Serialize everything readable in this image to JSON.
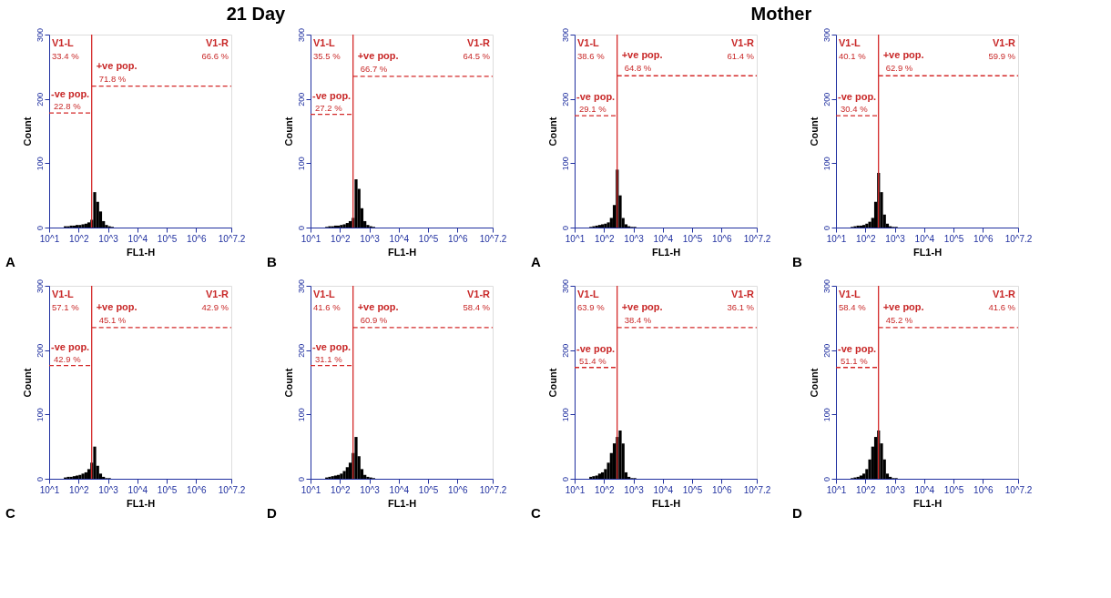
{
  "chart_data": [
    {
      "type": "histogram",
      "title": "21 Day",
      "xlabel": "FL1-H",
      "ylabel": "Count",
      "log": "x",
      "xlim": [
        10,
        15848932
      ],
      "xticks": [
        {
          "value": 10,
          "label": "10^1"
        },
        {
          "value": 100,
          "label": "10^2"
        },
        {
          "value": 1000,
          "label": "10^3"
        },
        {
          "value": 10000,
          "label": "10^4"
        },
        {
          "value": 100000,
          "label": "10^5"
        },
        {
          "value": 1000000,
          "label": "10^6"
        },
        {
          "value": 15848932,
          "label": "10^7.2"
        }
      ],
      "ylim": [
        0,
        300
      ],
      "yticks": [
        0,
        100,
        200,
        300
      ],
      "color": "#000000",
      "bins": [
        31.6,
        39.8,
        50.1,
        63.1,
        79.4,
        100,
        125.9,
        158.5,
        199.5,
        251.2,
        316.2,
        398.1,
        501.2,
        631,
        794.3,
        1000,
        1258.9,
        1584.9
      ],
      "values": [
        2,
        2,
        3,
        3,
        4,
        4,
        5,
        6,
        8,
        12,
        55,
        40,
        25,
        10,
        4,
        2,
        1
      ],
      "ref_lines": [
        {
          "axis": "x",
          "value": 280,
          "color": "#d42a2a"
        }
      ],
      "series": [
        {
          "type": "line",
          "line_style": "dashed",
          "color": "#d42a2a",
          "x": [
            10,
            280
          ],
          "values": [
            178,
            178
          ]
        },
        {
          "type": "line",
          "line_style": "dashed",
          "color": "#d42a2a",
          "x": [
            280,
            15848932
          ],
          "values": [
            220,
            220
          ]
        }
      ],
      "annotations": [
        "A",
        "V1-L",
        "33.4 %",
        "V1-R",
        "66.6 %",
        "-ve pop.",
        "22.8 %",
        "+ve pop.",
        "71.8 %"
      ]
    },
    {
      "type": "histogram",
      "xlabel": "FL1-H",
      "ylabel": "Count",
      "log": "x",
      "xlim": [
        10,
        15848932
      ],
      "xticks": [
        {
          "value": 10,
          "label": "10^1"
        },
        {
          "value": 100,
          "label": "10^2"
        },
        {
          "value": 1000,
          "label": "10^3"
        },
        {
          "value": 10000,
          "label": "10^4"
        },
        {
          "value": 100000,
          "label": "10^5"
        },
        {
          "value": 1000000,
          "label": "10^6"
        },
        {
          "value": 15848932,
          "label": "10^7.2"
        }
      ],
      "ylim": [
        0,
        300
      ],
      "yticks": [
        0,
        100,
        200,
        300
      ],
      "color": "#000000",
      "bins": [
        31.6,
        39.8,
        50.1,
        63.1,
        79.4,
        100,
        125.9,
        158.5,
        199.5,
        251.2,
        316.2,
        398.1,
        501.2,
        631,
        794.3,
        1000,
        1258.9,
        1584.9
      ],
      "values": [
        1,
        2,
        2,
        3,
        3,
        4,
        5,
        7,
        10,
        15,
        75,
        60,
        30,
        10,
        4,
        2,
        1
      ],
      "ref_lines": [
        {
          "axis": "x",
          "value": 280,
          "color": "#d42a2a"
        }
      ],
      "series": [
        {
          "type": "line",
          "line_style": "dashed",
          "color": "#d42a2a",
          "x": [
            10,
            280
          ],
          "values": [
            176,
            176
          ]
        },
        {
          "type": "line",
          "line_style": "dashed",
          "color": "#d42a2a",
          "x": [
            280,
            15848932
          ],
          "values": [
            235,
            235
          ]
        }
      ],
      "annotations": [
        "B",
        "V1-L",
        "35.5 %",
        "V1-R",
        "64.5 %",
        "-ve pop.",
        "27.2 %",
        "+ve pop.",
        "66.7 %"
      ]
    },
    {
      "type": "histogram",
      "xlabel": "FL1-H",
      "ylabel": "Count",
      "log": "x",
      "xlim": [
        10,
        15848932
      ],
      "xticks": [
        {
          "value": 10,
          "label": "10^1"
        },
        {
          "value": 100,
          "label": "10^2"
        },
        {
          "value": 1000,
          "label": "10^3"
        },
        {
          "value": 10000,
          "label": "10^4"
        },
        {
          "value": 100000,
          "label": "10^5"
        },
        {
          "value": 1000000,
          "label": "10^6"
        },
        {
          "value": 15848932,
          "label": "10^7.2"
        }
      ],
      "ylim": [
        0,
        300
      ],
      "yticks": [
        0,
        100,
        200,
        300
      ],
      "color": "#000000",
      "bins": [
        31.6,
        39.8,
        50.1,
        63.1,
        79.4,
        100,
        125.9,
        158.5,
        199.5,
        251.2,
        316.2,
        398.1,
        501.2,
        631,
        794.3,
        1000,
        1258.9,
        1584.9
      ],
      "values": [
        2,
        3,
        3,
        4,
        5,
        6,
        8,
        10,
        15,
        25,
        50,
        20,
        8,
        3,
        1,
        1,
        0
      ],
      "ref_lines": [
        {
          "axis": "x",
          "value": 280,
          "color": "#d42a2a"
        }
      ],
      "series": [
        {
          "type": "line",
          "line_style": "dashed",
          "color": "#d42a2a",
          "x": [
            10,
            280
          ],
          "values": [
            176,
            176
          ]
        },
        {
          "type": "line",
          "line_style": "dashed",
          "color": "#d42a2a",
          "x": [
            280,
            15848932
          ],
          "values": [
            235,
            235
          ]
        }
      ],
      "annotations": [
        "C",
        "V1-L",
        "57.1 %",
        "V1-R",
        "42.9 %",
        "-ve pop.",
        "42.9 %",
        "+ve pop.",
        "45.1 %"
      ]
    },
    {
      "type": "histogram",
      "xlabel": "FL1-H",
      "ylabel": "Count",
      "log": "x",
      "xlim": [
        10,
        15848932
      ],
      "xticks": [
        {
          "value": 10,
          "label": "10^1"
        },
        {
          "value": 100,
          "label": "10^2"
        },
        {
          "value": 1000,
          "label": "10^3"
        },
        {
          "value": 10000,
          "label": "10^4"
        },
        {
          "value": 100000,
          "label": "10^5"
        },
        {
          "value": 1000000,
          "label": "10^6"
        },
        {
          "value": 15848932,
          "label": "10^7.2"
        }
      ],
      "ylim": [
        0,
        300
      ],
      "yticks": [
        0,
        100,
        200,
        300
      ],
      "color": "#000000",
      "bins": [
        31.6,
        39.8,
        50.1,
        63.1,
        79.4,
        100,
        125.9,
        158.5,
        199.5,
        251.2,
        316.2,
        398.1,
        501.2,
        631,
        794.3,
        1000,
        1258.9,
        1584.9
      ],
      "values": [
        2,
        3,
        4,
        5,
        6,
        8,
        12,
        18,
        25,
        40,
        65,
        35,
        15,
        6,
        3,
        2,
        1
      ],
      "ref_lines": [
        {
          "axis": "x",
          "value": 280,
          "color": "#d42a2a"
        }
      ],
      "series": [
        {
          "type": "line",
          "line_style": "dashed",
          "color": "#d42a2a",
          "x": [
            10,
            280
          ],
          "values": [
            176,
            176
          ]
        },
        {
          "type": "line",
          "line_style": "dashed",
          "color": "#d42a2a",
          "x": [
            280,
            15848932
          ],
          "values": [
            235,
            235
          ]
        }
      ],
      "annotations": [
        "D",
        "V1-L",
        "41.6 %",
        "V1-R",
        "58.4 %",
        "-ve pop.",
        "31.1 %",
        "+ve pop.",
        "60.9 %"
      ]
    },
    {
      "type": "histogram",
      "title": "Mother",
      "xlabel": "FL1-H",
      "ylabel": "Count",
      "log": "x",
      "xlim": [
        10,
        15848932
      ],
      "xticks": [
        {
          "value": 10,
          "label": "10^1"
        },
        {
          "value": 100,
          "label": "10^2"
        },
        {
          "value": 1000,
          "label": "10^3"
        },
        {
          "value": 10000,
          "label": "10^4"
        },
        {
          "value": 100000,
          "label": "10^5"
        },
        {
          "value": 1000000,
          "label": "10^6"
        },
        {
          "value": 15848932,
          "label": "10^7.2"
        }
      ],
      "ylim": [
        0,
        300
      ],
      "yticks": [
        0,
        100,
        200,
        300
      ],
      "color": "#000000",
      "bins": [
        31.6,
        39.8,
        50.1,
        63.1,
        79.4,
        100,
        125.9,
        158.5,
        199.5,
        251.2,
        316.2,
        398.1,
        501.2,
        631,
        794.3,
        1000,
        1258.9,
        1584.9
      ],
      "values": [
        1,
        2,
        3,
        4,
        5,
        6,
        8,
        15,
        35,
        90,
        50,
        15,
        5,
        2,
        1,
        1,
        0
      ],
      "ref_lines": [
        {
          "axis": "x",
          "value": 280,
          "color": "#d42a2a"
        }
      ],
      "series": [
        {
          "type": "line",
          "line_style": "dashed",
          "color": "#d42a2a",
          "x": [
            10,
            280
          ],
          "values": [
            174,
            174
          ]
        },
        {
          "type": "line",
          "line_style": "dashed",
          "color": "#d42a2a",
          "x": [
            280,
            15848932
          ],
          "values": [
            236,
            236
          ]
        }
      ],
      "annotations": [
        "A",
        "V1-L",
        "38.6 %",
        "V1-R",
        "61.4 %",
        "-ve pop.",
        "29.1 %",
        "+ve pop.",
        "64.8 %"
      ]
    },
    {
      "type": "histogram",
      "xlabel": "FL1-H",
      "ylabel": "Count",
      "log": "x",
      "xlim": [
        10,
        15848932
      ],
      "xticks": [
        {
          "value": 10,
          "label": "10^1"
        },
        {
          "value": 100,
          "label": "10^2"
        },
        {
          "value": 1000,
          "label": "10^3"
        },
        {
          "value": 10000,
          "label": "10^4"
        },
        {
          "value": 100000,
          "label": "10^5"
        },
        {
          "value": 1000000,
          "label": "10^6"
        },
        {
          "value": 15848932,
          "label": "10^7.2"
        }
      ],
      "ylim": [
        0,
        300
      ],
      "yticks": [
        0,
        100,
        200,
        300
      ],
      "color": "#000000",
      "bins": [
        31.6,
        39.8,
        50.1,
        63.1,
        79.4,
        100,
        125.9,
        158.5,
        199.5,
        251.2,
        316.2,
        398.1,
        501.2,
        631,
        794.3,
        1000,
        1258.9,
        1584.9
      ],
      "values": [
        1,
        2,
        3,
        3,
        4,
        6,
        9,
        15,
        40,
        85,
        55,
        20,
        6,
        2,
        1,
        1,
        0
      ],
      "ref_lines": [
        {
          "axis": "x",
          "value": 280,
          "color": "#d42a2a"
        }
      ],
      "series": [
        {
          "type": "line",
          "line_style": "dashed",
          "color": "#d42a2a",
          "x": [
            10,
            280
          ],
          "values": [
            174,
            174
          ]
        },
        {
          "type": "line",
          "line_style": "dashed",
          "color": "#d42a2a",
          "x": [
            280,
            15848932
          ],
          "values": [
            236,
            236
          ]
        }
      ],
      "annotations": [
        "B",
        "V1-L",
        "40.1 %",
        "V1-R",
        "59.9 %",
        "-ve pop.",
        "30.4 %",
        "+ve pop.",
        "62.9 %"
      ]
    },
    {
      "type": "histogram",
      "xlabel": "FL1-H",
      "ylabel": "Count",
      "log": "x",
      "xlim": [
        10,
        15848932
      ],
      "xticks": [
        {
          "value": 10,
          "label": "10^1"
        },
        {
          "value": 100,
          "label": "10^2"
        },
        {
          "value": 1000,
          "label": "10^3"
        },
        {
          "value": 10000,
          "label": "10^4"
        },
        {
          "value": 100000,
          "label": "10^5"
        },
        {
          "value": 1000000,
          "label": "10^6"
        },
        {
          "value": 15848932,
          "label": "10^7.2"
        }
      ],
      "ylim": [
        0,
        300
      ],
      "yticks": [
        0,
        100,
        200,
        300
      ],
      "color": "#000000",
      "bins": [
        31.6,
        39.8,
        50.1,
        63.1,
        79.4,
        100,
        125.9,
        158.5,
        199.5,
        251.2,
        316.2,
        398.1,
        501.2,
        631,
        794.3,
        1000,
        1258.9,
        1584.9
      ],
      "values": [
        3,
        4,
        5,
        8,
        10,
        15,
        25,
        40,
        55,
        65,
        75,
        55,
        10,
        3,
        1,
        1,
        0
      ],
      "ref_lines": [
        {
          "axis": "x",
          "value": 280,
          "color": "#d42a2a"
        }
      ],
      "series": [
        {
          "type": "line",
          "line_style": "dashed",
          "color": "#d42a2a",
          "x": [
            10,
            280
          ],
          "values": [
            173,
            173
          ]
        },
        {
          "type": "line",
          "line_style": "dashed",
          "color": "#d42a2a",
          "x": [
            280,
            15848932
          ],
          "values": [
            235,
            235
          ]
        }
      ],
      "annotations": [
        "C",
        "V1-L",
        "63.9 %",
        "V1-R",
        "36.1 %",
        "-ve pop.",
        "51.4 %",
        "+ve pop.",
        "38.4 %"
      ]
    },
    {
      "type": "histogram",
      "xlabel": "FL1-H",
      "ylabel": "Count",
      "log": "x",
      "xlim": [
        10,
        15848932
      ],
      "xticks": [
        {
          "value": 10,
          "label": "10^1"
        },
        {
          "value": 100,
          "label": "10^2"
        },
        {
          "value": 1000,
          "label": "10^3"
        },
        {
          "value": 10000,
          "label": "10^4"
        },
        {
          "value": 100000,
          "label": "10^5"
        },
        {
          "value": 1000000,
          "label": "10^6"
        },
        {
          "value": 15848932,
          "label": "10^7.2"
        }
      ],
      "ylim": [
        0,
        300
      ],
      "yticks": [
        0,
        100,
        200,
        300
      ],
      "color": "#000000",
      "bins": [
        31.6,
        39.8,
        50.1,
        63.1,
        79.4,
        100,
        125.9,
        158.5,
        199.5,
        251.2,
        316.2,
        398.1,
        501.2,
        631,
        794.3,
        1000,
        1258.9,
        1584.9
      ],
      "values": [
        1,
        2,
        3,
        5,
        8,
        15,
        30,
        50,
        65,
        75,
        55,
        30,
        8,
        3,
        1,
        1,
        0
      ],
      "ref_lines": [
        {
          "axis": "x",
          "value": 280,
          "color": "#d42a2a"
        }
      ],
      "series": [
        {
          "type": "line",
          "line_style": "dashed",
          "color": "#d42a2a",
          "x": [
            10,
            280
          ],
          "values": [
            173,
            173
          ]
        },
        {
          "type": "line",
          "line_style": "dashed",
          "color": "#d42a2a",
          "x": [
            280,
            15848932
          ],
          "values": [
            235,
            235
          ]
        }
      ],
      "annotations": [
        "D",
        "V1-L",
        "58.4 %",
        "V1-R",
        "41.6 %",
        "-ve pop.",
        "51.1 %",
        "+ve pop.",
        "45.2 %"
      ]
    }
  ]
}
